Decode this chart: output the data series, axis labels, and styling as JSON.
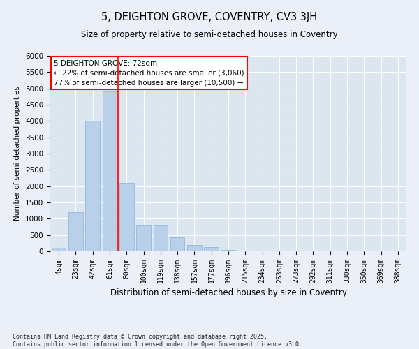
{
  "title1": "5, DEIGHTON GROVE, COVENTRY, CV3 3JH",
  "title2": "Size of property relative to semi-detached houses in Coventry",
  "xlabel": "Distribution of semi-detached houses by size in Coventry",
  "ylabel": "Number of semi-detached properties",
  "categories": [
    "4sqm",
    "23sqm",
    "42sqm",
    "61sqm",
    "80sqm",
    "100sqm",
    "119sqm",
    "138sqm",
    "157sqm",
    "177sqm",
    "196sqm",
    "215sqm",
    "234sqm",
    "253sqm",
    "273sqm",
    "292sqm",
    "311sqm",
    "330sqm",
    "350sqm",
    "369sqm",
    "388sqm"
  ],
  "values": [
    100,
    1200,
    4000,
    4900,
    2100,
    800,
    800,
    420,
    200,
    120,
    50,
    15,
    5,
    2,
    1,
    0,
    0,
    0,
    0,
    0,
    0
  ],
  "bar_color": "#b8d0ea",
  "bar_edgecolor": "#8ab0d8",
  "annotation_text": "5 DEIGHTON GROVE: 72sqm\n← 22% of semi-detached houses are smaller (3,060)\n77% of semi-detached houses are larger (10,500) →",
  "annotation_box_edgecolor": "red",
  "vline_x": 3.5,
  "vline_color": "red",
  "ylim": [
    0,
    6000
  ],
  "yticks": [
    0,
    500,
    1000,
    1500,
    2000,
    2500,
    3000,
    3500,
    4000,
    4500,
    5000,
    5500,
    6000
  ],
  "footer": "Contains HM Land Registry data © Crown copyright and database right 2025.\nContains public sector information licensed under the Open Government Licence v3.0.",
  "background_color": "#eaeff8",
  "plot_background": "#dce6f0"
}
